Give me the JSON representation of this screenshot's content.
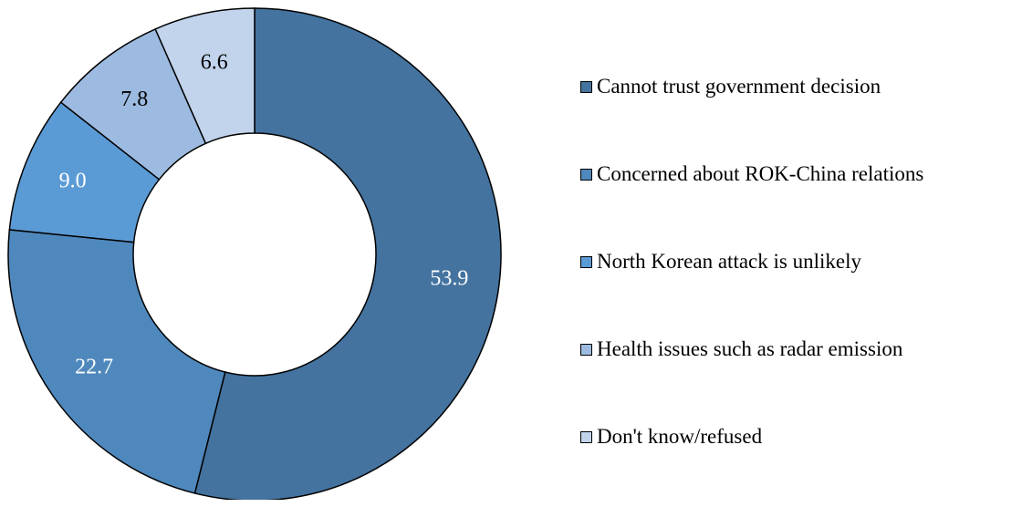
{
  "chart_data": {
    "type": "pie",
    "variant": "donut",
    "title": "",
    "categories": [
      "Cannot trust government decision",
      "Concerned about ROK-China relations",
      "North Korean attack is unlikely",
      "Health issues such as radar emission",
      "Don't know/refused"
    ],
    "values": [
      53.9,
      22.7,
      9.0,
      7.8,
      6.6
    ],
    "value_labels": [
      "53.9",
      "22.7",
      "9.0",
      "7.8",
      "6.6"
    ],
    "colors": [
      "#44739f",
      "#4f88bc",
      "#5b9bd5",
      "#9dbbe0",
      "#c2d4ec"
    ],
    "label_colors": [
      "#ffffff",
      "#ffffff",
      "#ffffff",
      "#000000",
      "#000000"
    ],
    "legend_position": "right",
    "start_angle": "12 o'clock",
    "direction": "clockwise"
  }
}
